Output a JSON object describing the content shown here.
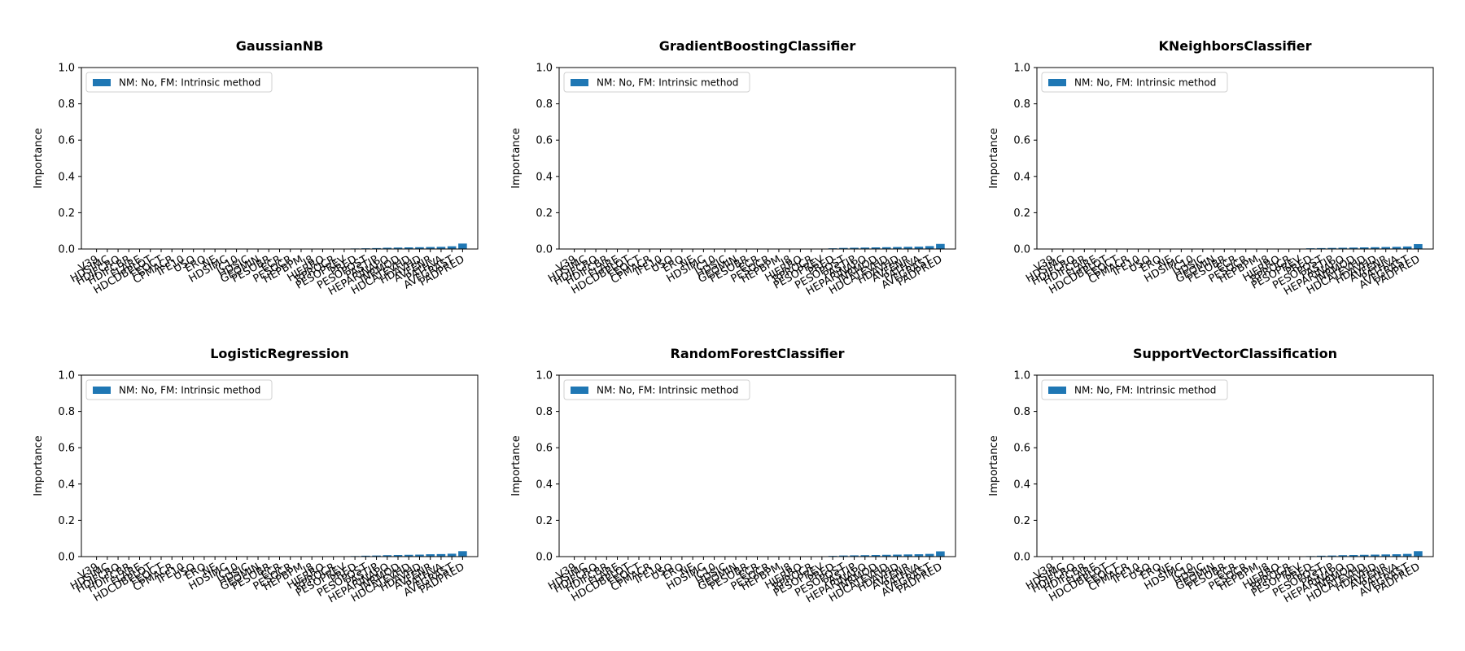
{
  "chart_data": [
    {
      "type": "bar",
      "title": "GaussianNB",
      "ylabel": "Importance",
      "ylim": [
        0.0,
        1.0
      ],
      "yticks": [
        "0.0",
        "0.2",
        "0.4",
        "0.6",
        "0.8",
        "1.0"
      ],
      "legend_position": "upper-left",
      "series": [
        {
          "name": "NM: No, FM: Intrinsic method",
          "color": "#1f77b4",
          "values": [
            0.0,
            0.0,
            0.0,
            0.0,
            0.0,
            0.0,
            0.0,
            0.0,
            0.0,
            0.0,
            0.0,
            0.0,
            0.0,
            0.0,
            0.0,
            0.0,
            0.0,
            0.0,
            0.0,
            0.0,
            0.0,
            0.0,
            0.0,
            0.001,
            0.003,
            0.004,
            0.005,
            0.007,
            0.008,
            0.009,
            0.01,
            0.011,
            0.012,
            0.015,
            0.03
          ]
        }
      ],
      "categories": [
        "V39",
        "HDSIMC",
        "HDIFCRO",
        "HDIFCBR",
        "FLARE",
        "HDCDBPLOT",
        "FEOCT",
        "CPMACR",
        "IFE10",
        "USO",
        "ERO",
        "NE",
        "HDSIMC",
        "IC10",
        "HDSIC",
        "GEOMIN",
        "PESOBR",
        "ECR",
        "PESOCR",
        "HEPBPM",
        "I8",
        "HIERRO",
        "RPROCR",
        "PESOPREV",
        "PRED",
        "PESOPOST",
        "PASTIP",
        "HEPARINAPO",
        "INRMOD",
        "HDCATEVHD",
        "HDAVHD",
        "AVFENR",
        "PATHVA",
        "AVFGRAST",
        "PADPRED"
      ]
    },
    {
      "type": "bar",
      "title": "GradientBoostingClassifier",
      "ylabel": "Importance",
      "ylim": [
        0.0,
        1.0
      ],
      "yticks": [
        "0.0",
        "0.2",
        "0.4",
        "0.6",
        "0.8",
        "1.0"
      ],
      "legend_position": "upper-left",
      "series": [
        {
          "name": "NM: No, FM: Intrinsic method",
          "color": "#1f77b4",
          "values": [
            0.0,
            0.0,
            0.0,
            0.0,
            0.0,
            0.0,
            0.0,
            0.0,
            0.0,
            0.0,
            0.0,
            0.0,
            0.0,
            0.0,
            0.0,
            0.0,
            0.0,
            0.0,
            0.0,
            0.0,
            0.0,
            0.0,
            0.0,
            0.002,
            0.004,
            0.006,
            0.007,
            0.008,
            0.009,
            0.01,
            0.011,
            0.012,
            0.013,
            0.016,
            0.028
          ]
        }
      ],
      "categories": [
        "V39",
        "HDSIMC",
        "HDIFCRO",
        "HDIFCBR",
        "FLARE",
        "HDCDBPLOT",
        "FEOCT",
        "CPMACR",
        "IFE10",
        "USO",
        "ERO",
        "NE",
        "HDSIMC",
        "IC10",
        "HDSIC",
        "GEOMIN",
        "PESOBR",
        "ECR",
        "PESOCR",
        "HEPBPM",
        "I8",
        "HIERRO",
        "RPROCR",
        "PESOPREV",
        "PRED",
        "PESOPOST",
        "PASTIP",
        "HEPARINAPO",
        "INRMOD",
        "HDCATEVHD",
        "HDAVHD",
        "AVFENR",
        "PATHVA",
        "AVFGRAST",
        "PADPRED"
      ]
    },
    {
      "type": "bar",
      "title": "KNeighborsClassifier",
      "ylabel": "Importance",
      "ylim": [
        0.0,
        1.0
      ],
      "yticks": [
        "0.0",
        "0.2",
        "0.4",
        "0.6",
        "0.8",
        "1.0"
      ],
      "legend_position": "upper-left",
      "series": [
        {
          "name": "NM: No, FM: Intrinsic method",
          "color": "#1f77b4",
          "values": [
            0.0,
            0.0,
            0.0,
            0.0,
            0.0,
            0.0,
            0.0,
            0.0,
            0.0,
            0.0,
            0.0,
            0.0,
            0.0,
            0.0,
            0.0,
            0.0,
            0.0,
            0.0,
            0.0,
            0.0,
            0.0,
            0.0,
            0.0,
            0.002,
            0.004,
            0.005,
            0.006,
            0.007,
            0.008,
            0.009,
            0.01,
            0.011,
            0.012,
            0.014,
            0.027
          ]
        }
      ],
      "categories": [
        "V39",
        "HDSIMC",
        "HDIFCRO",
        "HDIFCBR",
        "FLARE",
        "HDCDBPLOT",
        "FEOCT",
        "CPMACR",
        "IFE10",
        "USO",
        "ERO",
        "NE",
        "HDSIMC",
        "IC10",
        "HDSIC",
        "GEOMIN",
        "PESOBR",
        "ECR",
        "PESOCR",
        "HEPBPM",
        "I8",
        "HIERRO",
        "RPROCR",
        "PESOPREV",
        "PRED",
        "PESOPOST",
        "PASTIP",
        "HEPARINAPO",
        "INRMOD",
        "HDCATEVHD",
        "HDAVHD",
        "AVFENR",
        "PATHVA",
        "AVFGRAST",
        "PADPRED"
      ]
    },
    {
      "type": "bar",
      "title": "LogisticRegression",
      "ylabel": "Importance",
      "ylim": [
        0.0,
        1.0
      ],
      "yticks": [
        "0.0",
        "0.2",
        "0.4",
        "0.6",
        "0.8",
        "1.0"
      ],
      "legend_position": "upper-left",
      "series": [
        {
          "name": "NM: No, FM: Intrinsic method",
          "color": "#1f77b4",
          "values": [
            0.0,
            0.0,
            0.0,
            0.0,
            0.0,
            0.0,
            0.0,
            0.0,
            0.0,
            0.0,
            0.0,
            0.0,
            0.0,
            0.0,
            0.0,
            0.0,
            0.0,
            0.0,
            0.0,
            0.0,
            0.0,
            0.0,
            0.0,
            0.001,
            0.003,
            0.005,
            0.006,
            0.008,
            0.009,
            0.01,
            0.011,
            0.013,
            0.014,
            0.016,
            0.03
          ]
        }
      ],
      "categories": [
        "V39",
        "HDSIMC",
        "HDIFCRO",
        "HDIFCBR",
        "FLARE",
        "HDCDBPLOT",
        "FEOCT",
        "CPMACR",
        "IFE10",
        "USO",
        "ERO",
        "NE",
        "HDSIMC",
        "IC10",
        "HDSIC",
        "GEOMIN",
        "PESOBR",
        "ECR",
        "PESOCR",
        "HEPBPM",
        "I8",
        "HIERRO",
        "RPROCR",
        "PESOPREV",
        "PRED",
        "PESOPOST",
        "PASTIP",
        "HEPARINAPO",
        "INRMOD",
        "HDCATEVHD",
        "HDAVHD",
        "AVFENR",
        "PATHVA",
        "AVFGRAST",
        "PADPRED"
      ]
    },
    {
      "type": "bar",
      "title": "RandomForestClassifier",
      "ylabel": "Importance",
      "ylim": [
        0.0,
        1.0
      ],
      "yticks": [
        "0.0",
        "0.2",
        "0.4",
        "0.6",
        "0.8",
        "1.0"
      ],
      "legend_position": "upper-left",
      "series": [
        {
          "name": "NM: No, FM: Intrinsic method",
          "color": "#1f77b4",
          "values": [
            0.0,
            0.0,
            0.0,
            0.0,
            0.0,
            0.0,
            0.0,
            0.0,
            0.0,
            0.0,
            0.0,
            0.0,
            0.0,
            0.0,
            0.0,
            0.0,
            0.0,
            0.0,
            0.0,
            0.0,
            0.0,
            0.0,
            0.0,
            0.002,
            0.004,
            0.006,
            0.007,
            0.008,
            0.009,
            0.01,
            0.011,
            0.012,
            0.013,
            0.015,
            0.029
          ]
        }
      ],
      "categories": [
        "V39",
        "HDSIMC",
        "HDIFCRO",
        "HDIFCBR",
        "FLARE",
        "HDCDBPLOT",
        "FEOCT",
        "CPMACR",
        "IFE10",
        "USO",
        "ERO",
        "NE",
        "HDSIMC",
        "IC10",
        "HDSIC",
        "GEOMIN",
        "PESOBR",
        "ECR",
        "PESOCR",
        "HEPBPM",
        "I8",
        "HIERRO",
        "RPROCR",
        "PESOPREV",
        "PRED",
        "PESOPOST",
        "PASTIP",
        "HEPARINAPO",
        "INRMOD",
        "HDCATEVHD",
        "HDAVHD",
        "AVFENR",
        "PATHVA",
        "AVFGRAST",
        "PADPRED"
      ]
    },
    {
      "type": "bar",
      "title": "SupportVectorClassification",
      "ylabel": "Importance",
      "ylim": [
        0.0,
        1.0
      ],
      "yticks": [
        "0.0",
        "0.2",
        "0.4",
        "0.6",
        "0.8",
        "1.0"
      ],
      "legend_position": "upper-left",
      "series": [
        {
          "name": "NM: No, FM: Intrinsic method",
          "color": "#1f77b4",
          "values": [
            0.0,
            0.0,
            0.0,
            0.0,
            0.0,
            0.0,
            0.0,
            0.0,
            0.0,
            0.0,
            0.0,
            0.0,
            0.0,
            0.0,
            0.0,
            0.0,
            0.0,
            0.0,
            0.0,
            0.0,
            0.0,
            0.0,
            0.0,
            0.001,
            0.003,
            0.005,
            0.006,
            0.008,
            0.009,
            0.01,
            0.011,
            0.012,
            0.013,
            0.015,
            0.03
          ]
        }
      ],
      "categories": [
        "V39",
        "HDSIMC",
        "HDIFCRO",
        "HDIFCBR",
        "FLARE",
        "HDCDBPLOT",
        "FEOCT",
        "CPMACR",
        "IFE10",
        "USO",
        "ERO",
        "NE",
        "HDSIMC",
        "IC10",
        "HDSIC",
        "GEOMIN",
        "PESOBR",
        "ECR",
        "PESOCR",
        "HEPBPM",
        "I8",
        "HIERRO",
        "RPROCR",
        "PESOPREV",
        "PRED",
        "PESOPOST",
        "PASTIP",
        "HEPARINAPO",
        "INRMOD",
        "HDCATEVHD",
        "HDAVHD",
        "AVFENR",
        "PATHVA",
        "AVFGRAST",
        "PADPRED"
      ]
    }
  ]
}
